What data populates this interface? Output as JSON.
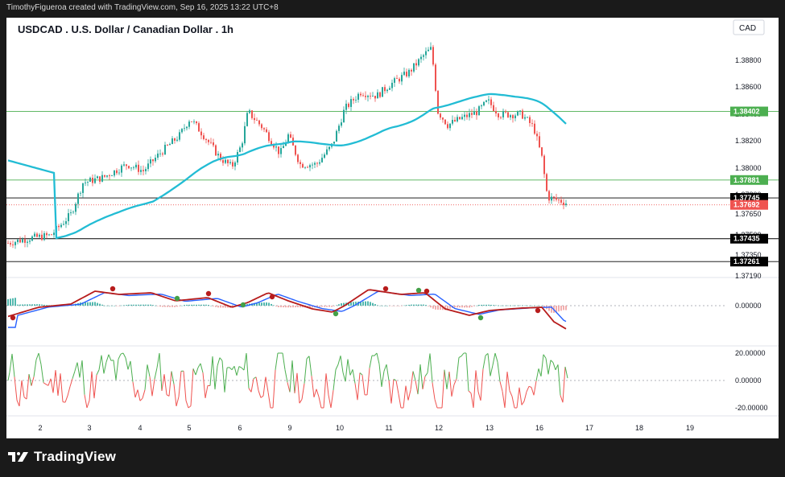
{
  "header": {
    "attribution": "TimothyFigueroa created with TradingView.com, Sep 16, 2025 13:22 UTC+8",
    "title": "USDCAD . U.S. Dollar / Canadian Dollar . 1h",
    "currency": "CAD"
  },
  "footer": {
    "brand": "TradingView"
  },
  "colors": {
    "up": "#26a69a",
    "down": "#ef5350",
    "ma": "#22bcd4",
    "green_line": "#4caf50",
    "black_line": "#000000",
    "macd_fast": "#43a047",
    "macd_slow": "#2962ff",
    "macd_signal": "#b71c1c"
  },
  "chart_data": [
    {
      "type": "candlestick",
      "panel": "price",
      "y_ticks": [
        "1.38800",
        "1.38600",
        "1.38400",
        "1.38200",
        "1.38000",
        "1.37800",
        "1.37650",
        "1.37500",
        "1.37350",
        "1.37190"
      ],
      "x_ticks": [
        "2",
        "3",
        "4",
        "5",
        "6",
        "9",
        "10",
        "11",
        "12",
        "13",
        "16",
        "17",
        "18",
        "19"
      ],
      "ylim": [
        1.3714,
        1.3898
      ],
      "moving_average": "cyan",
      "horizontal_lines": [
        {
          "value": 1.38402,
          "label": "1.38402",
          "color": "green"
        },
        {
          "value": 1.37881,
          "label": "1.37881",
          "color": "green"
        },
        {
          "value": 1.37745,
          "label": "1.37745",
          "color": "black"
        },
        {
          "value": 1.37435,
          "label": "1.37435",
          "color": "black"
        },
        {
          "value": 1.37261,
          "label": "1.37261",
          "color": "black"
        }
      ],
      "last_price": {
        "value": 1.37692,
        "label": "1.37692"
      }
    },
    {
      "type": "macd",
      "panel": "macd",
      "y_ticks": [
        "0.00000"
      ]
    },
    {
      "type": "line",
      "panel": "oscillator",
      "y_ticks": [
        "20.00000",
        "0.00000",
        "-20.00000"
      ],
      "ylim": [
        -20,
        20
      ]
    }
  ]
}
